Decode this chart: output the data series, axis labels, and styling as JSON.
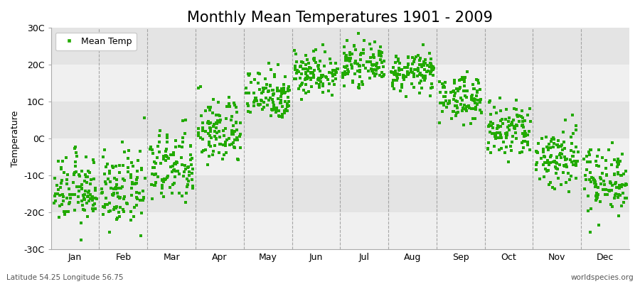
{
  "title": "Monthly Mean Temperatures 1901 - 2009",
  "ylabel": "Temperature",
  "subtitle_left": "Latitude 54.25 Longitude 56.75",
  "subtitle_right": "worldspecies.org",
  "legend_label": "Mean Temp",
  "dot_color": "#22aa00",
  "background_color": "#ffffff",
  "band_light": "#f0f0f0",
  "band_dark": "#e4e4e4",
  "ylim": [
    -30,
    30
  ],
  "yticks": [
    -30,
    -20,
    -10,
    0,
    10,
    20,
    30
  ],
  "ytick_labels": [
    "-30C",
    "-20C",
    "-10C",
    "0C",
    "10C",
    "20C",
    "30C"
  ],
  "months": [
    "Jan",
    "Feb",
    "Mar",
    "Apr",
    "May",
    "Jun",
    "Jul",
    "Aug",
    "Sep",
    "Oct",
    "Nov",
    "Dec"
  ],
  "month_means": [
    -14,
    -14,
    -8,
    2,
    12,
    18,
    20,
    18,
    11,
    2,
    -5,
    -11
  ],
  "month_stds": [
    4.5,
    5.0,
    5.0,
    4.5,
    3.5,
    3.0,
    2.5,
    2.5,
    3.0,
    4.0,
    4.5,
    4.5
  ],
  "n_years": 109,
  "marker_size": 3.5,
  "title_fontsize": 15,
  "axis_fontsize": 9,
  "tick_fontsize": 9,
  "vline_color": "#888888",
  "spine_color": "#aaaaaa"
}
